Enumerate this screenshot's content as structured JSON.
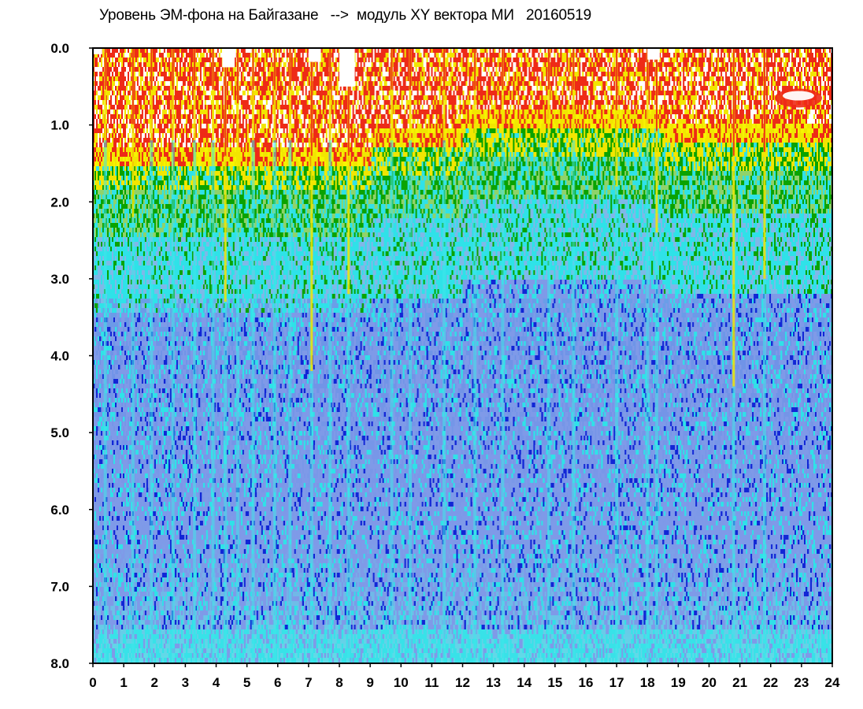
{
  "chart_data": {
    "type": "heatmap",
    "title": "Уровень ЭМ-фона на Байгазане   -->  модуль XY вектора МИ   20160519",
    "x_ticks": [
      "0",
      "1",
      "2",
      "3",
      "4",
      "5",
      "6",
      "7",
      "8",
      "9",
      "10",
      "11",
      "12",
      "13",
      "14",
      "15",
      "16",
      "17",
      "18",
      "19",
      "20",
      "21",
      "22",
      "23",
      "24"
    ],
    "y_ticks": [
      "0.0",
      "1.0",
      "2.0",
      "3.0",
      "4.0",
      "5.0",
      "6.0",
      "7.0",
      "8.0"
    ],
    "xlim": [
      0,
      24
    ],
    "ylim": [
      0,
      8
    ],
    "y_inverted": true,
    "grid": false,
    "colorscale": [
      "#ffffff",
      "#ee2a17",
      "#f2e600",
      "#f7f500",
      "#0aa300",
      "#2fe2e8",
      "#7f9ae8",
      "#1126d6"
    ]
  }
}
